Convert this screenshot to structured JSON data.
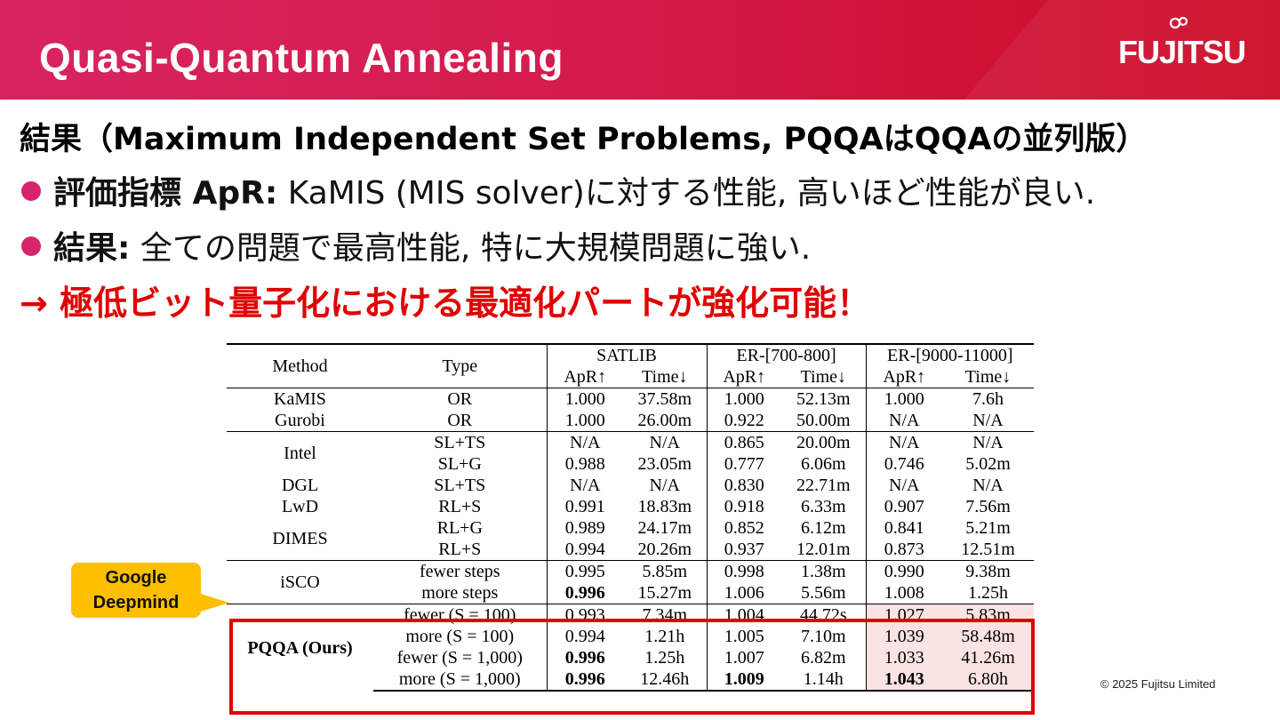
{
  "header": {
    "title": "Quasi-Quantum Annealing",
    "logo": "FUJITSU"
  },
  "heading": "結果（Maximum Independent Set Problems, PQQAはQQAの並列版）",
  "bullets": [
    {
      "label": "評価指標 ApR:",
      "text": " KaMIS (MIS solver)に対する性能, 高いほど性能が良い."
    },
    {
      "label": "結果:",
      "text": " 全ての問題で最高性能, 特に大規模問題に強い."
    }
  ],
  "conclusion": "→ 極低ビット量子化における最適化パートが強化可能！",
  "callout": {
    "line1": "Google",
    "line2": "Deepmind"
  },
  "copyright": "© 2025 Fujitsu Limited",
  "table": {
    "col_method": "Method",
    "col_type": "Type",
    "groups": [
      "SATLIB",
      "ER-[700-800]",
      "ER-[9000-11000]"
    ],
    "sub": [
      "ApR↑",
      "Time↓"
    ],
    "rows": [
      {
        "method": "KaMIS",
        "type": "OR",
        "v": [
          "1.000",
          "37.58m",
          "1.000",
          "52.13m",
          "1.000",
          "7.6h"
        ]
      },
      {
        "method": "Gurobi",
        "type": "OR",
        "v": [
          "1.000",
          "26.00m",
          "0.922",
          "50.00m",
          "N/A",
          "N/A"
        ]
      },
      {
        "method": "Intel",
        "type": "SL+TS",
        "v": [
          "N/A",
          "N/A",
          "0.865",
          "20.00m",
          "N/A",
          "N/A"
        ]
      },
      {
        "method": "",
        "type": "SL+G",
        "v": [
          "0.988",
          "23.05m",
          "0.777",
          "6.06m",
          "0.746",
          "5.02m"
        ]
      },
      {
        "method": "DGL",
        "type": "SL+TS",
        "v": [
          "N/A",
          "N/A",
          "0.830",
          "22.71m",
          "N/A",
          "N/A"
        ]
      },
      {
        "method": "LwD",
        "type": "RL+S",
        "v": [
          "0.991",
          "18.83m",
          "0.918",
          "6.33m",
          "0.907",
          "7.56m"
        ]
      },
      {
        "method": "DIMES",
        "type": "RL+G",
        "v": [
          "0.989",
          "24.17m",
          "0.852",
          "6.12m",
          "0.841",
          "5.21m"
        ]
      },
      {
        "method": "",
        "type": "RL+S",
        "v": [
          "0.994",
          "20.26m",
          "0.937",
          "12.01m",
          "0.873",
          "12.51m"
        ]
      },
      {
        "method": "iSCO",
        "type": "fewer steps",
        "v": [
          "0.995",
          "5.85m",
          "0.998",
          "1.38m",
          "0.990",
          "9.38m"
        ]
      },
      {
        "method": "",
        "type": "more steps",
        "v": [
          "0.996",
          "15.27m",
          "1.006",
          "5.56m",
          "1.008",
          "1.25h"
        ]
      },
      {
        "method": "PQQA (Ours)",
        "type": "fewer (S = 100)",
        "v": [
          "0.993",
          "7.34m",
          "1.004",
          "44.72s",
          "1.027",
          "5.83m"
        ]
      },
      {
        "method": "",
        "type": "more (S = 100)",
        "v": [
          "0.994",
          "1.21h",
          "1.005",
          "7.10m",
          "1.039",
          "58.48m"
        ]
      },
      {
        "method": "",
        "type": "fewer (S = 1,000)",
        "v": [
          "0.996",
          "1.25h",
          "1.007",
          "6.82m",
          "1.033",
          "41.26m"
        ]
      },
      {
        "method": "",
        "type": "more (S = 1,000)",
        "v": [
          "0.996",
          "12.46h",
          "1.009",
          "1.14h",
          "1.043",
          "6.80h"
        ]
      }
    ]
  },
  "colors": {
    "brand": "#d41c4c",
    "bullet": "#d8246a",
    "accent_red": "#e00000",
    "callout": "#fbbf00",
    "highlight": "#fbe3e3"
  }
}
